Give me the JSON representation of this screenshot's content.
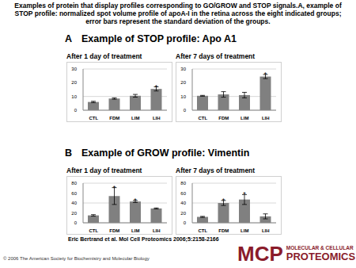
{
  "caption": "Examples of protein that display profiles corresponding to GO/GROW and STOP signals.A, example of STOP profile: normalized spot volume profile of apoA-I in the retina across the eight indicated groups; error bars represent the standard deviation of the groups.",
  "sections": [
    {
      "letter": "A",
      "title": "Example of STOP profile: Apo A1"
    },
    {
      "letter": "B",
      "title": "Example of GROW profile: Vimentin"
    }
  ],
  "chart_data": [
    {
      "type": "bar",
      "title": "After 1 day of treatment",
      "categories": [
        "CTL",
        "FDM",
        "LIM",
        "LIH"
      ],
      "values": [
        6,
        8.5,
        10.5,
        15.5
      ],
      "errors": [
        0.5,
        0.5,
        1,
        1.5
      ],
      "annotations": [
        null,
        null,
        null,
        "*"
      ],
      "color": "#808080",
      "ylim": [
        0,
        30
      ],
      "yticks": [
        0,
        10,
        20,
        30
      ],
      "grid": true
    },
    {
      "type": "bar",
      "title": "After 7 days of treatment",
      "categories": [
        "CTL",
        "FDM",
        "LIM",
        "LIH"
      ],
      "values": [
        10.5,
        11.5,
        11,
        24.5
      ],
      "errors": [
        0.3,
        2,
        2,
        1.5
      ],
      "annotations": [
        null,
        null,
        null,
        "*"
      ],
      "color": "#808080",
      "ylim": [
        0,
        30
      ],
      "yticks": [
        0,
        10,
        20,
        30
      ],
      "grid": true
    },
    {
      "type": "bar",
      "title": "After 1 day of treatment",
      "categories": [
        "CTL",
        "FDM",
        "LIM",
        "LIH"
      ],
      "values": [
        15,
        54,
        43,
        29
      ],
      "errors": [
        1.5,
        17,
        2,
        1
      ],
      "annotations": [
        null,
        "*",
        "*",
        null
      ],
      "color": "#808080",
      "ylim": [
        0,
        80
      ],
      "yticks": [
        0,
        20,
        40,
        60,
        80
      ],
      "grid": true
    },
    {
      "type": "bar",
      "title": "After 7 days of treatment",
      "categories": [
        "CTL",
        "FDM",
        "LIM",
        "LIH"
      ],
      "values": [
        12,
        40,
        47,
        13
      ],
      "errors": [
        1,
        5,
        10,
        5
      ],
      "annotations": [
        null,
        "*",
        "*",
        null
      ],
      "color": "#808080",
      "ylim": [
        0,
        80
      ],
      "yticks": [
        0,
        20,
        40,
        60,
        80
      ],
      "grid": true
    }
  ],
  "credit": "Eric Bertrand et al. Mol Cell Proteomics 2006;5:2158-2166",
  "copyright": "© 2006 The American Society for Biochemistry and Molecular Biology",
  "logo": {
    "short": "MCP",
    "long": [
      "MOLECULAR & CELLULAR",
      "PROTEOMICS"
    ]
  }
}
